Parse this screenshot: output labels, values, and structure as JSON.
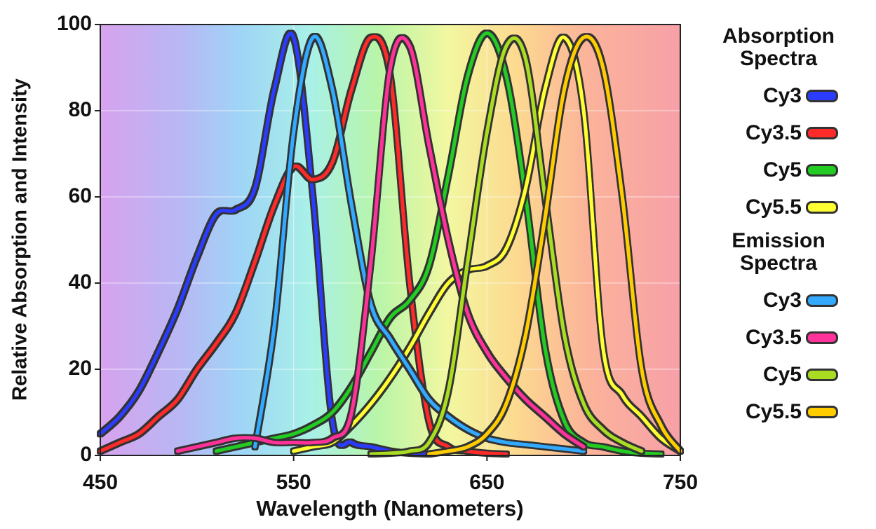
{
  "chart_data": {
    "type": "line",
    "x_label": "Wavelength (Nanometers)",
    "y_label": "Relative Absorption and Intensity",
    "x": [
      450,
      460,
      470,
      480,
      490,
      500,
      510,
      520,
      530,
      540,
      550,
      560,
      570,
      580,
      590,
      600,
      610,
      620,
      630,
      640,
      650,
      660,
      670,
      680,
      690,
      700,
      710,
      720,
      730,
      740,
      750
    ],
    "xlim": [
      450,
      750
    ],
    "xticks": [
      450,
      550,
      650,
      750
    ],
    "ylim": [
      0,
      100
    ],
    "yticks": [
      0,
      20,
      40,
      60,
      80,
      100
    ],
    "grid": true,
    "groups": [
      {
        "title": "Absorption Spectra",
        "series": [
          {
            "name": "Cy3",
            "color": "#2b3cff",
            "values": [
              5,
              9,
              15,
              24,
              34,
              46,
              56,
              57,
              62,
              85,
              97,
              60,
              8,
              3,
              2,
              1,
              0.5,
              0,
              null,
              null,
              null,
              null,
              null,
              null,
              null,
              null,
              null,
              null,
              null,
              null,
              null
            ]
          },
          {
            "name": "Cy3.5",
            "color": "#ff2a2a",
            "values": [
              1,
              3,
              5,
              9,
              13,
              20,
              26,
              33,
              45,
              58,
              67,
              64,
              68,
              85,
              97,
              88,
              40,
              8,
              2,
              1,
              0.5,
              0,
              null,
              null,
              null,
              null,
              null,
              null,
              null,
              null,
              null
            ]
          },
          {
            "name": "Cy5",
            "color": "#22cc22",
            "values": [
              null,
              null,
              null,
              null,
              null,
              null,
              1,
              2,
              3,
              4,
              5,
              7,
              10,
              16,
              24,
              32,
              36,
              44,
              65,
              88,
              98,
              88,
              60,
              25,
              8,
              3,
              2,
              1,
              0.5,
              0,
              null
            ]
          },
          {
            "name": "Cy5.5",
            "color": "#ffff33",
            "values": [
              null,
              null,
              null,
              null,
              null,
              null,
              null,
              null,
              null,
              null,
              1,
              2,
              3,
              7,
              12,
              18,
              25,
              33,
              40,
              43,
              44,
              48,
              62,
              85,
              97,
              80,
              25,
              14,
              9,
              4,
              1
            ]
          }
        ]
      },
      {
        "title": "Emission Spectra",
        "series": [
          {
            "name": "Cy3",
            "color": "#33aaff",
            "values": [
              null,
              null,
              null,
              null,
              null,
              null,
              null,
              null,
              2,
              30,
              75,
              97,
              85,
              58,
              35,
              27,
              20,
              13,
              9,
              6,
              4,
              3,
              2.5,
              2,
              1.5,
              1,
              null,
              null,
              null,
              null,
              null
            ]
          },
          {
            "name": "Cy3.5",
            "color": "#ff3399",
            "values": [
              null,
              null,
              null,
              null,
              1,
              2,
              3,
              4,
              4,
              3,
              3,
              3,
              4,
              10,
              45,
              90,
              95,
              72,
              50,
              33,
              24,
              18,
              13,
              9,
              5,
              2,
              null,
              null,
              null,
              null,
              null
            ]
          },
          {
            "name": "Cy5",
            "color": "#aadd22",
            "values": [
              null,
              null,
              null,
              null,
              null,
              null,
              null,
              null,
              null,
              null,
              null,
              null,
              null,
              null,
              0,
              0.5,
              1,
              3,
              15,
              45,
              75,
              95,
              92,
              60,
              28,
              12,
              6,
              3,
              1,
              null,
              null
            ]
          },
          {
            "name": "Cy5.5",
            "color": "#ffcc00",
            "values": [
              null,
              null,
              null,
              null,
              null,
              null,
              null,
              null,
              null,
              null,
              null,
              null,
              null,
              null,
              null,
              null,
              null,
              0,
              1,
              2,
              5,
              12,
              28,
              55,
              85,
              97,
              90,
              60,
              20,
              7,
              1
            ]
          }
        ]
      }
    ]
  }
}
